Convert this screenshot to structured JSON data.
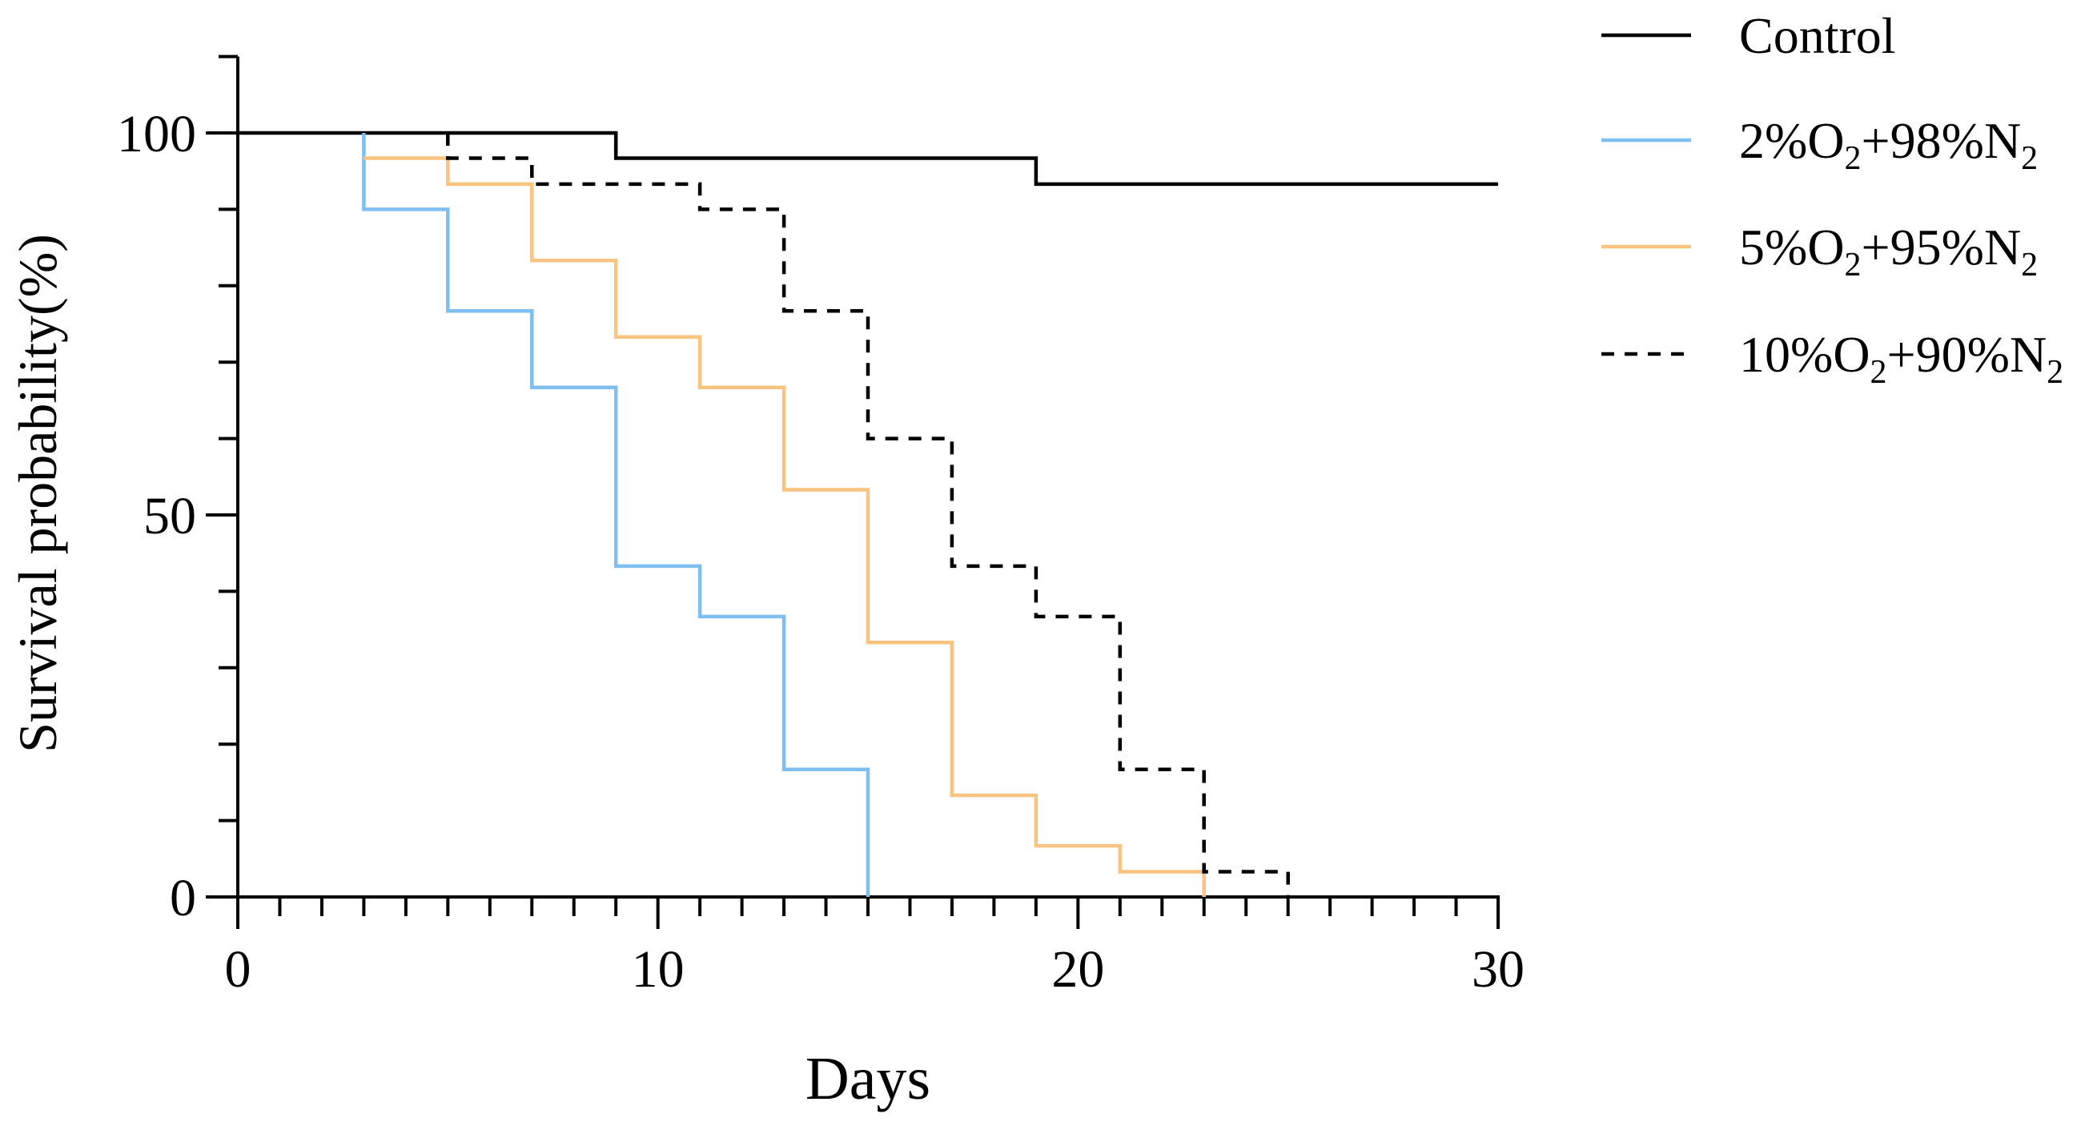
{
  "chart_data": {
    "type": "line",
    "subtype": "kaplan-meier-step",
    "title": "",
    "xlabel": "Days",
    "ylabel": "Survival probability(%)",
    "xlim": [
      0,
      30
    ],
    "ylim": [
      0,
      110
    ],
    "x_ticks": [
      0,
      10,
      20,
      30
    ],
    "x_tick_labels": [
      "0",
      "10",
      "20",
      "30"
    ],
    "x_minor_step": 1,
    "y_ticks": [
      0,
      50,
      100
    ],
    "y_tick_labels": [
      "0",
      "50",
      "100"
    ],
    "y_minor_step": 10,
    "grid": false,
    "legend_position": "top-right",
    "series": [
      {
        "name": "Control",
        "legend": {
          "base": "Control",
          "parts": []
        },
        "color": "#000000",
        "style": "solid",
        "x": [
          0,
          9,
          19,
          30
        ],
        "y": [
          100,
          96.7,
          93.3,
          93.3
        ]
      },
      {
        "name": "2%O2+98%N2",
        "legend": {
          "base": "2%O",
          "parts": [
            {
              "sub": "2"
            },
            {
              "text": "+98%N"
            },
            {
              "sub": "2"
            }
          ]
        },
        "color": "#7ebef0",
        "style": "solid",
        "x": [
          3,
          3,
          5,
          7,
          9,
          11,
          13,
          15,
          15
        ],
        "y": [
          100,
          90,
          76.7,
          66.7,
          43.3,
          36.7,
          16.7,
          16.7,
          0
        ]
      },
      {
        "name": "5%O2+95%N2",
        "legend": {
          "base": "5%O",
          "parts": [
            {
              "sub": "2"
            },
            {
              "text": "+95%N"
            },
            {
              "sub": "2"
            }
          ]
        },
        "color": "#f9c47f",
        "style": "solid",
        "x": [
          3,
          5,
          7,
          9,
          11,
          13,
          15,
          17,
          19,
          21,
          23,
          23
        ],
        "y": [
          96.7,
          93.3,
          83.3,
          73.3,
          66.7,
          53.3,
          33.3,
          13.3,
          6.7,
          3.3,
          3.3,
          0
        ]
      },
      {
        "name": "10%O2+90%N2",
        "legend": {
          "base": "10%O",
          "parts": [
            {
              "sub": "2"
            },
            {
              "text": "+90%N"
            },
            {
              "sub": "2"
            }
          ]
        },
        "color": "#000000",
        "style": "dashed",
        "x": [
          5,
          5,
          7,
          11,
          13,
          15,
          17,
          19,
          21,
          23,
          25,
          25
        ],
        "y": [
          100,
          96.7,
          93.3,
          90,
          76.7,
          60,
          43.3,
          36.7,
          16.7,
          3.3,
          3.3,
          0
        ]
      }
    ]
  }
}
